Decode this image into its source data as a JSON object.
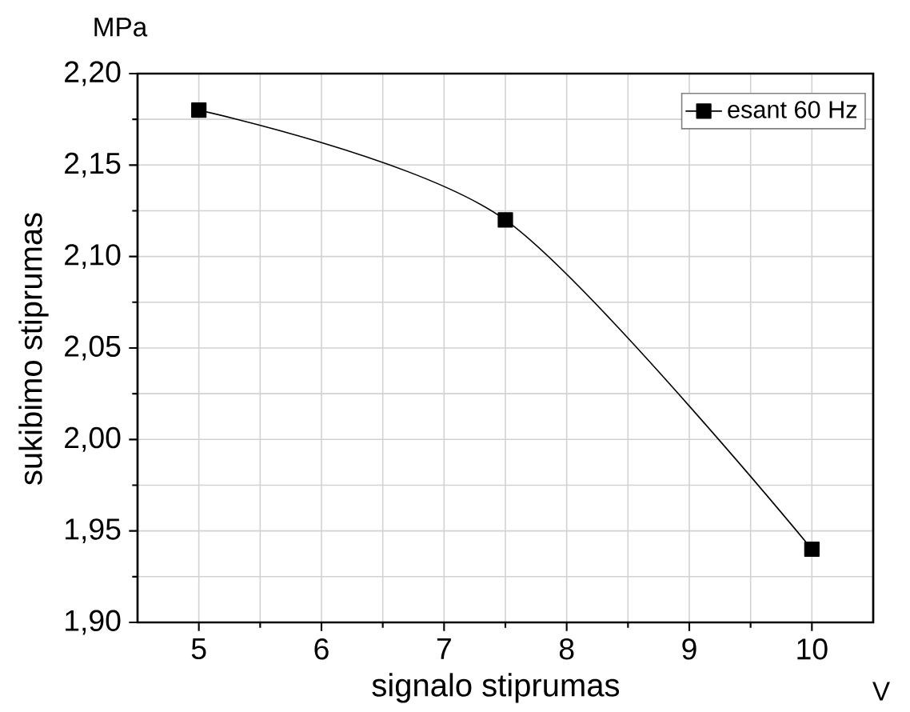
{
  "chart_data": {
    "type": "line",
    "xlabel": "signalo stiprumas",
    "ylabel": "sukibimo stiprumas",
    "annotations": [
      "MPa",
      "V"
    ],
    "x": [
      5,
      7.5,
      10
    ],
    "series": [
      {
        "name": "esant 60 Hz",
        "color": "#000000",
        "values": [
          2.18,
          2.12,
          1.94
        ]
      }
    ],
    "xlim": [
      4.5,
      10.5
    ],
    "xticks": [
      5,
      6,
      7,
      8,
      9,
      10
    ],
    "ylim": [
      1.9,
      2.2
    ],
    "yticks": [
      {
        "value": 1.9,
        "label": "1,90"
      },
      {
        "value": 1.95,
        "label": "1,95"
      },
      {
        "value": 2.0,
        "label": "2,00"
      },
      {
        "value": 2.05,
        "label": "2,05"
      },
      {
        "value": 2.1,
        "label": "2,10"
      },
      {
        "value": 2.15,
        "label": "2,15"
      },
      {
        "value": 2.2,
        "label": "2,20"
      }
    ],
    "grid": true,
    "legend": "top right",
    "marker": "square",
    "line_style": "solid"
  }
}
